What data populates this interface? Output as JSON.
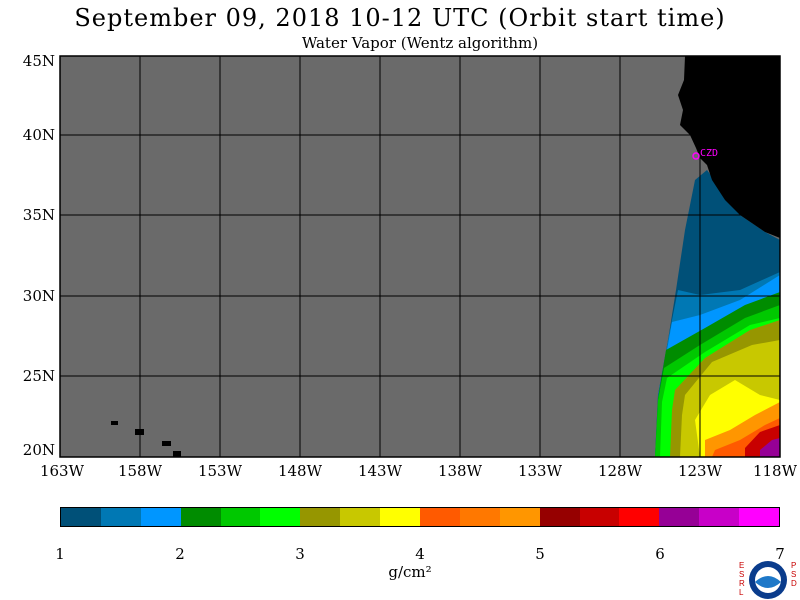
{
  "header": {
    "title": "September 09, 2018  10-12 UTC  (Orbit start time)",
    "subtitle": "Water Vapor (Wentz algorithm)"
  },
  "map": {
    "lat_labels": [
      "45N",
      "40N",
      "35N",
      "30N",
      "25N",
      "20N"
    ],
    "lon_labels": [
      "163W",
      "158W",
      "153W",
      "148W",
      "143W",
      "138W",
      "133W",
      "128W",
      "123W",
      "118W"
    ],
    "station_label": "CZD",
    "colors": {
      "no_data": "#6a6a6a",
      "land": "#000000",
      "grid": "#000000",
      "station": "#ff00ff"
    }
  },
  "colorbar": {
    "colors": [
      "#005078",
      "#0078b4",
      "#0096ff",
      "#008c00",
      "#00c800",
      "#00ff00",
      "#969600",
      "#c8c800",
      "#ffff00",
      "#ff5a00",
      "#ff7800",
      "#ff9600",
      "#960000",
      "#c80000",
      "#ff0000",
      "#960096",
      "#c800c8",
      "#ff00ff"
    ],
    "tick_labels": [
      "1",
      "2",
      "3",
      "4",
      "5",
      "6",
      "7"
    ],
    "units": "g/cm²"
  },
  "logo": {
    "left_letters": "ESRL",
    "right_letters": "PSD",
    "center": "NOAA"
  }
}
